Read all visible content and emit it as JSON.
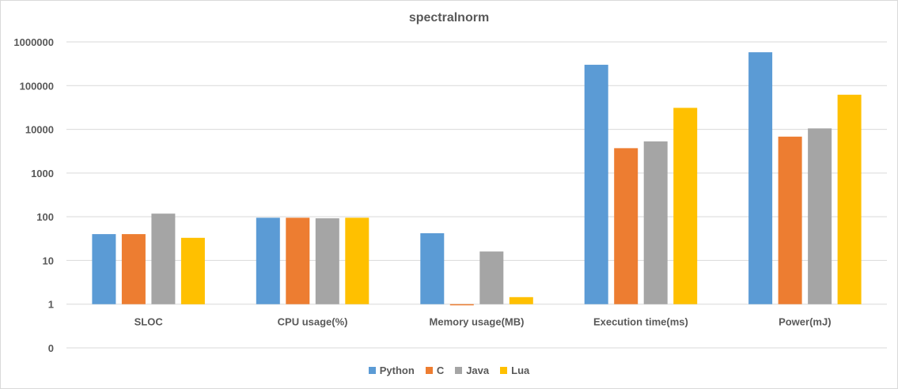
{
  "chart_data": {
    "type": "bar",
    "title": "spectralnorm",
    "yscale": "log",
    "ylim": [
      0.1,
      1000000
    ],
    "ytick_labels": [
      "0",
      "1",
      "10",
      "100",
      "1000",
      "10000",
      "100000",
      "1000000"
    ],
    "ytick_values": [
      0.1,
      1,
      10,
      100,
      1000,
      10000,
      100000,
      1000000
    ],
    "categories": [
      "SLOC",
      "CPU usage(%)",
      "Memory usage(MB)",
      "Execution time(ms)",
      "Power(mJ)"
    ],
    "series": [
      {
        "name": "Python",
        "color": "#5b9bd5",
        "values": [
          40,
          95,
          42,
          300000,
          580000
        ]
      },
      {
        "name": "C",
        "color": "#ed7d31",
        "values": [
          40,
          95,
          0.95,
          3700,
          6800
        ]
      },
      {
        "name": "Java",
        "color": "#a5a5a5",
        "values": [
          118,
          92,
          16,
          5300,
          10500
        ]
      },
      {
        "name": "Lua",
        "color": "#ffc000",
        "values": [
          33,
          95,
          1.45,
          31000,
          62000
        ]
      }
    ],
    "grid": true,
    "legend_position": "bottom"
  }
}
